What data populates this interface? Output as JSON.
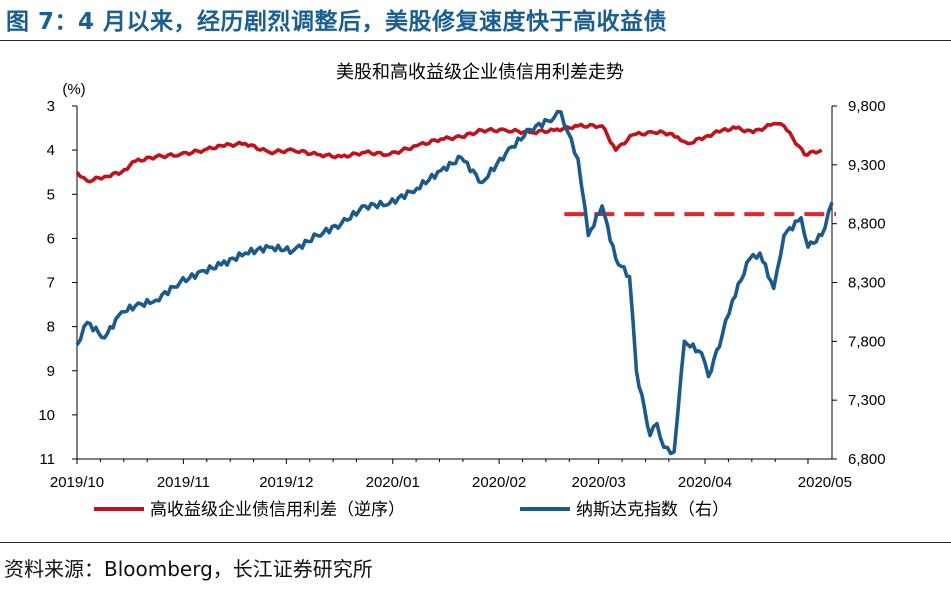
{
  "figure_title": "图 7：4 月以来，经历剧烈调整后，美股修复速度快于高收益债",
  "source": "资料来源：Bloomberg，长江证券研究所",
  "chart_data": {
    "type": "line",
    "title": "美股和高收益级企业债信用利差走势",
    "left_axis": {
      "unit_label": "(%)",
      "range": [
        3,
        11
      ],
      "inverted": true,
      "ticks": [
        "3",
        "4",
        "5",
        "6",
        "7",
        "8",
        "9",
        "10",
        "11"
      ]
    },
    "right_axis": {
      "range": [
        6800,
        9800
      ],
      "ticks": [
        "9,800",
        "9,300",
        "8,800",
        "8,300",
        "7,800",
        "7,300",
        "6,800"
      ]
    },
    "x_ticks": [
      "2019/10",
      "2019/11",
      "2019/12",
      "2020/01",
      "2020/02",
      "2020/03",
      "2020/04",
      "2020/05"
    ],
    "reference_line": {
      "axis": "left",
      "value": 5.45,
      "from": "2020-02-20",
      "to": "2020-05-08",
      "style": "dashed",
      "color": "#e3262d"
    },
    "series": [
      {
        "name": "高收益级企业债信用利差（逆序）",
        "axis": "left",
        "color": "#c0121b",
        "points": [
          [
            "2019-10-01",
            4.5
          ],
          [
            "2019-10-04",
            4.7
          ],
          [
            "2019-10-09",
            4.6
          ],
          [
            "2019-10-14",
            4.5
          ],
          [
            "2019-10-18",
            4.25
          ],
          [
            "2019-10-24",
            4.15
          ],
          [
            "2019-10-31",
            4.1
          ],
          [
            "2019-11-07",
            4.0
          ],
          [
            "2019-11-12",
            3.9
          ],
          [
            "2019-11-19",
            3.85
          ],
          [
            "2019-11-26",
            4.05
          ],
          [
            "2019-12-03",
            4.0
          ],
          [
            "2019-12-10",
            4.1
          ],
          [
            "2019-12-17",
            4.15
          ],
          [
            "2019-12-24",
            4.05
          ],
          [
            "2019-12-31",
            4.1
          ],
          [
            "2020-01-08",
            3.9
          ],
          [
            "2020-01-15",
            3.75
          ],
          [
            "2020-01-21",
            3.7
          ],
          [
            "2020-01-27",
            3.55
          ],
          [
            "2020-02-03",
            3.55
          ],
          [
            "2020-02-10",
            3.6
          ],
          [
            "2020-02-17",
            3.55
          ],
          [
            "2020-02-24",
            3.45
          ],
          [
            "2020-03-02",
            3.45
          ],
          [
            "2020-03-06",
            4.0
          ],
          [
            "2020-03-11",
            3.65
          ],
          [
            "2020-03-17",
            3.6
          ],
          [
            "2020-03-20",
            3.6
          ],
          [
            "2020-03-24",
            3.7
          ],
          [
            "2020-03-27",
            3.85
          ],
          [
            "2020-04-01",
            3.7
          ],
          [
            "2020-04-06",
            3.55
          ],
          [
            "2020-04-10",
            3.5
          ],
          [
            "2020-04-15",
            3.6
          ],
          [
            "2020-04-21",
            3.4
          ],
          [
            "2020-04-24",
            3.45
          ],
          [
            "2020-04-30",
            4.1
          ],
          [
            "2020-05-05",
            4.0
          ]
        ]
      },
      {
        "name": "纳斯达克指数（右）",
        "axis": "right",
        "color": "#1b5a8a",
        "points": [
          [
            "2019-10-01",
            7770
          ],
          [
            "2019-10-04",
            7960
          ],
          [
            "2019-10-09",
            7830
          ],
          [
            "2019-10-14",
            8050
          ],
          [
            "2019-10-18",
            8100
          ],
          [
            "2019-10-24",
            8150
          ],
          [
            "2019-10-31",
            8300
          ],
          [
            "2019-11-07",
            8400
          ],
          [
            "2019-11-12",
            8450
          ],
          [
            "2019-11-19",
            8550
          ],
          [
            "2019-11-26",
            8600
          ],
          [
            "2019-12-03",
            8570
          ],
          [
            "2019-12-10",
            8700
          ],
          [
            "2019-12-17",
            8800
          ],
          [
            "2019-12-24",
            8950
          ],
          [
            "2019-12-31",
            8970
          ],
          [
            "2020-01-08",
            9100
          ],
          [
            "2020-01-15",
            9250
          ],
          [
            "2020-01-21",
            9360
          ],
          [
            "2020-01-27",
            9150
          ],
          [
            "2020-02-03",
            9400
          ],
          [
            "2020-02-10",
            9600
          ],
          [
            "2020-02-17",
            9700
          ],
          [
            "2020-02-19",
            9750
          ],
          [
            "2020-02-21",
            9580
          ],
          [
            "2020-02-24",
            9350
          ],
          [
            "2020-02-27",
            8700
          ],
          [
            "2020-03-02",
            8950
          ],
          [
            "2020-03-06",
            8500
          ],
          [
            "2020-03-10",
            8350
          ],
          [
            "2020-03-12",
            7550
          ],
          [
            "2020-03-16",
            7000
          ],
          [
            "2020-03-18",
            7100
          ],
          [
            "2020-03-20",
            6900
          ],
          [
            "2020-03-23",
            6860
          ],
          [
            "2020-03-26",
            7800
          ],
          [
            "2020-03-31",
            7700
          ],
          [
            "2020-04-02",
            7500
          ],
          [
            "2020-04-06",
            7850
          ],
          [
            "2020-04-09",
            8150
          ],
          [
            "2020-04-14",
            8500
          ],
          [
            "2020-04-17",
            8550
          ],
          [
            "2020-04-21",
            8250
          ],
          [
            "2020-04-24",
            8700
          ],
          [
            "2020-04-29",
            8850
          ],
          [
            "2020-05-01",
            8600
          ],
          [
            "2020-05-05",
            8700
          ],
          [
            "2020-05-08",
            8980
          ]
        ]
      }
    ],
    "legend_position": "bottom"
  }
}
